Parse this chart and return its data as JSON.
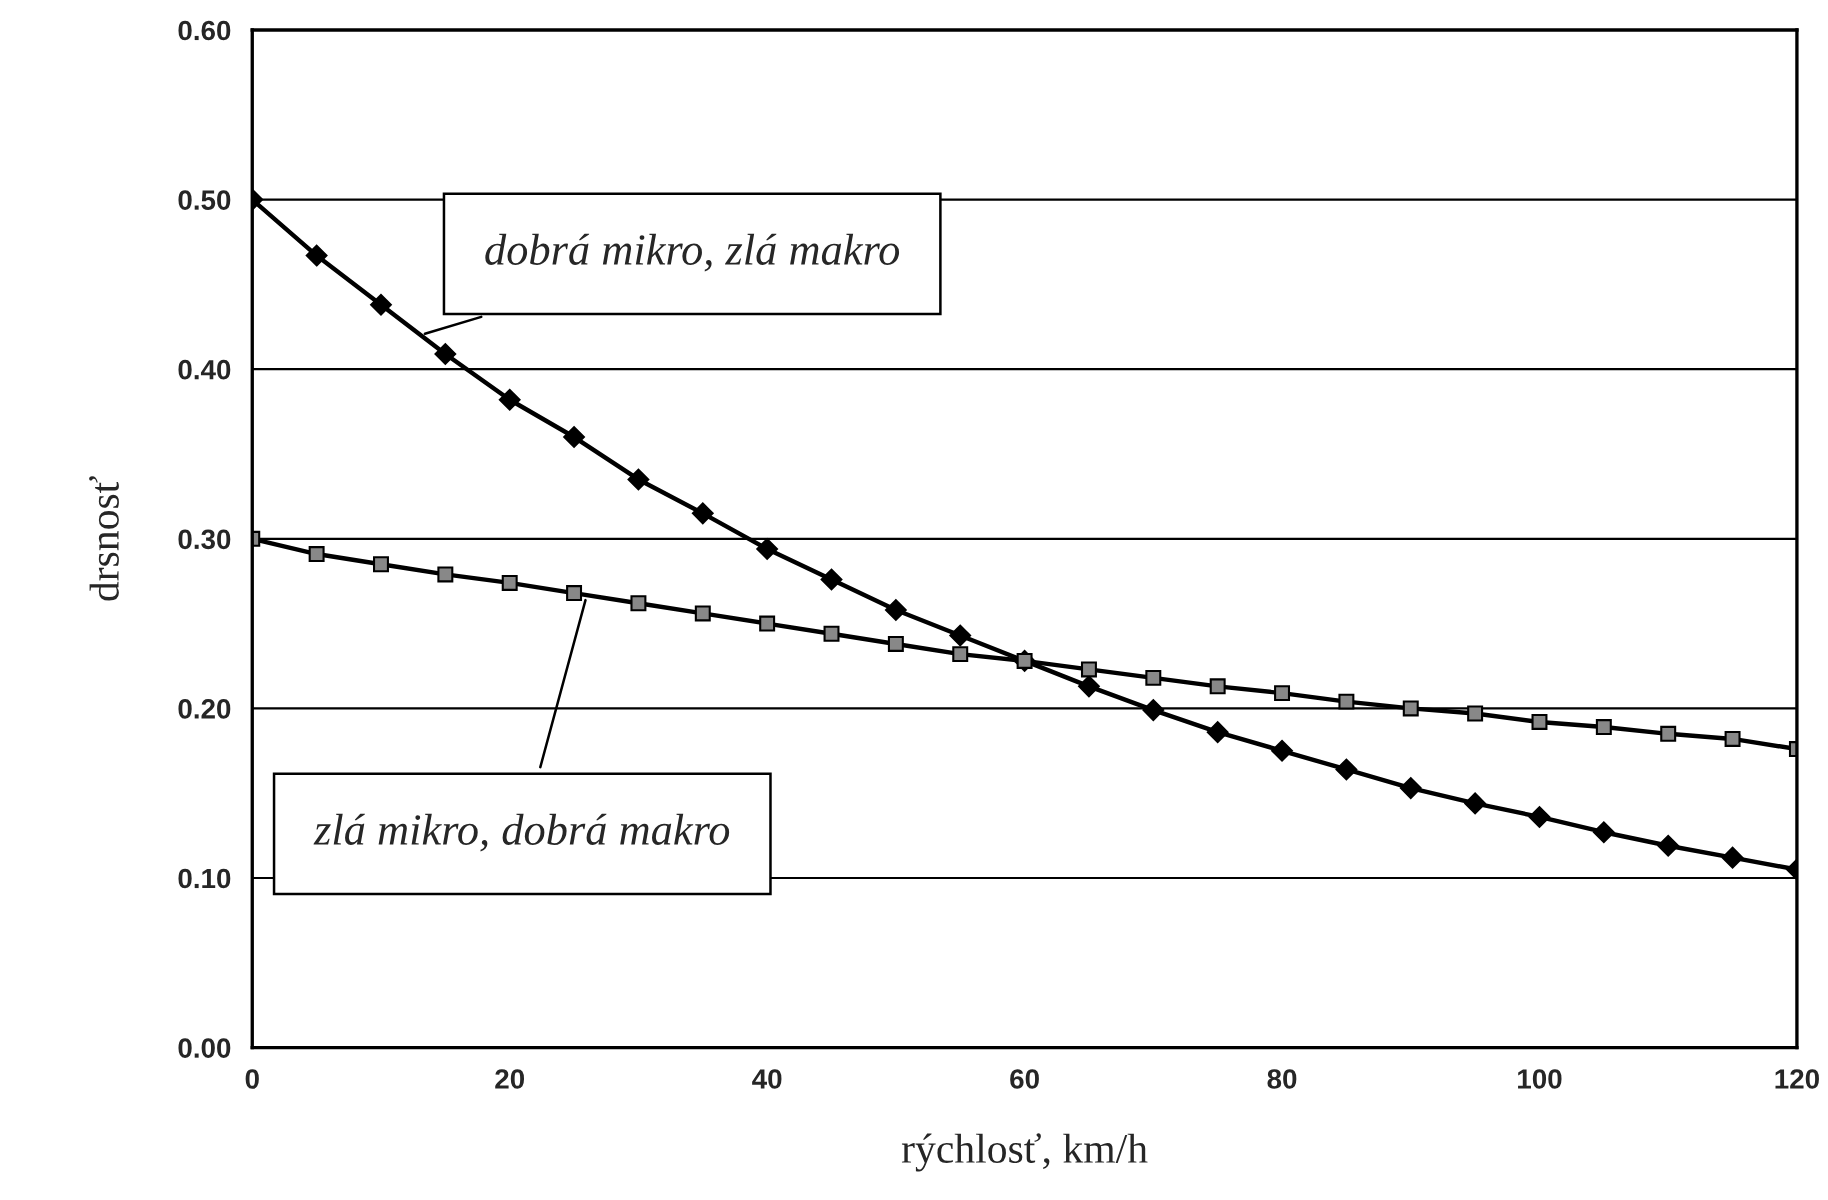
{
  "chart_data": {
    "type": "line",
    "xlabel": "rýchlosť, km/h",
    "ylabel": "drsnosť",
    "x": [
      0,
      5,
      10,
      15,
      20,
      25,
      30,
      35,
      40,
      45,
      50,
      55,
      60,
      65,
      70,
      75,
      80,
      85,
      90,
      95,
      100,
      105,
      110,
      115,
      120
    ],
    "series": [
      {
        "color": "#000000",
        "marker": "diamond",
        "values": [
          0.5,
          0.467,
          0.438,
          0.409,
          0.382,
          0.36,
          0.335,
          0.315,
          0.294,
          0.276,
          0.258,
          0.243,
          0.228,
          0.213,
          0.199,
          0.186,
          0.175,
          0.164,
          0.153,
          0.144,
          0.136,
          0.127,
          0.119,
          0.112,
          0.105
        ]
      },
      {
        "color": "#000000",
        "marker": "square",
        "values": [
          0.3,
          0.291,
          0.285,
          0.279,
          0.274,
          0.268,
          0.262,
          0.256,
          0.25,
          0.244,
          0.238,
          0.232,
          0.228,
          0.223,
          0.218,
          0.213,
          0.209,
          0.204,
          0.2,
          0.197,
          0.192,
          0.189,
          0.185,
          0.182,
          0.176
        ]
      }
    ],
    "annotations": [
      {
        "text": "dobrá mikro, zlá makro",
        "x": 13,
        "y": 0.42
      },
      {
        "text": "zlá mikro, dobrá makro",
        "x": 26,
        "y": 0.267
      }
    ],
    "xlim": [
      0,
      120
    ],
    "xticks": [
      0,
      20,
      40,
      60,
      80,
      100,
      120
    ],
    "ylim": [
      0,
      0.6
    ],
    "yticks": [
      {
        "value": 0,
        "label": "0.00"
      },
      {
        "value": 0.1,
        "label": "0.10"
      },
      {
        "value": 0.2,
        "label": "0.20"
      },
      {
        "value": 0.3,
        "label": "0.30"
      },
      {
        "value": 0.4,
        "label": "0.40"
      },
      {
        "value": 0.5,
        "label": "0.50"
      },
      {
        "value": 0.6,
        "label": "0.60"
      }
    ],
    "grid": "y",
    "line_style": "solid",
    "legend": false
  }
}
